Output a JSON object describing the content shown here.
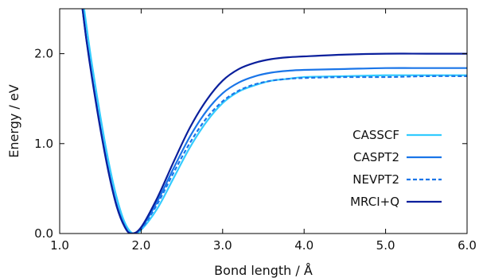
{
  "chart_data": {
    "type": "line",
    "title": "",
    "xlabel": "Bond length / Å",
    "ylabel": "Energy / eV",
    "xlim": [
      1.0,
      6.0
    ],
    "ylim": [
      0.0,
      2.5
    ],
    "xticks": [
      1.0,
      2.0,
      3.0,
      4.0,
      5.0,
      6.0
    ],
    "xtick_labels": [
      "1.0",
      "2.0",
      "3.0",
      "4.0",
      "5.0",
      "6.0"
    ],
    "yticks": [
      0.0,
      1.0,
      2.0
    ],
    "ytick_labels": [
      "0.0",
      "1.0",
      "2.0"
    ],
    "grid": false,
    "legend_position": "bottom-right",
    "series": [
      {
        "name": "CASSCF",
        "color": "#33ccff",
        "dashed": false,
        "x": [
          1.3,
          1.35,
          1.4,
          1.5,
          1.6,
          1.7,
          1.8,
          1.9,
          2.0,
          2.2,
          2.4,
          2.6,
          2.8,
          3.0,
          3.2,
          3.4,
          3.6,
          3.8,
          4.0,
          4.5,
          5.0,
          5.5,
          6.0
        ],
        "y": [
          2.5,
          2.17,
          1.86,
          1.3,
          0.8,
          0.4,
          0.12,
          0.0,
          0.04,
          0.28,
          0.62,
          0.96,
          1.24,
          1.45,
          1.58,
          1.65,
          1.7,
          1.72,
          1.74,
          1.75,
          1.76,
          1.76,
          1.76
        ]
      },
      {
        "name": "CASPT2",
        "color": "#1a75e8",
        "dashed": false,
        "x": [
          1.28,
          1.33,
          1.4,
          1.5,
          1.6,
          1.7,
          1.8,
          1.88,
          2.0,
          2.2,
          2.4,
          2.6,
          2.8,
          3.0,
          3.2,
          3.4,
          3.6,
          3.8,
          4.0,
          4.5,
          5.0,
          5.5,
          6.0
        ],
        "y": [
          2.5,
          2.15,
          1.73,
          1.18,
          0.7,
          0.32,
          0.08,
          0.0,
          0.06,
          0.36,
          0.73,
          1.08,
          1.36,
          1.56,
          1.68,
          1.75,
          1.79,
          1.81,
          1.82,
          1.83,
          1.84,
          1.84,
          1.84
        ]
      },
      {
        "name": "NEVPT2",
        "color": "#1a75e8",
        "dashed": true,
        "x": [
          1.28,
          1.33,
          1.4,
          1.5,
          1.6,
          1.7,
          1.8,
          1.88,
          2.0,
          2.2,
          2.4,
          2.6,
          2.8,
          3.0,
          3.2,
          3.4,
          3.6,
          3.8,
          4.0,
          4.5,
          5.0,
          5.5,
          6.0
        ],
        "y": [
          2.5,
          2.15,
          1.73,
          1.18,
          0.7,
          0.32,
          0.08,
          0.0,
          0.05,
          0.33,
          0.68,
          1.01,
          1.28,
          1.47,
          1.59,
          1.66,
          1.7,
          1.72,
          1.73,
          1.74,
          1.74,
          1.75,
          1.75
        ]
      },
      {
        "name": "MRCI+Q",
        "color": "#0a1f9c",
        "dashed": false,
        "x": [
          1.28,
          1.33,
          1.4,
          1.5,
          1.6,
          1.7,
          1.8,
          1.88,
          2.0,
          2.2,
          2.4,
          2.6,
          2.8,
          3.0,
          3.2,
          3.4,
          3.6,
          3.8,
          4.0,
          4.5,
          5.0,
          5.5,
          6.0
        ],
        "y": [
          2.5,
          2.14,
          1.71,
          1.16,
          0.68,
          0.3,
          0.07,
          0.0,
          0.07,
          0.4,
          0.8,
          1.18,
          1.48,
          1.7,
          1.83,
          1.9,
          1.94,
          1.96,
          1.97,
          1.99,
          2.0,
          2.0,
          2.0
        ]
      }
    ]
  }
}
